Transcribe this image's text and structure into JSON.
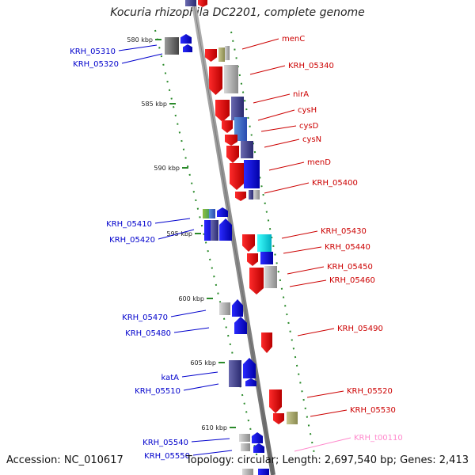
{
  "title": "Kocuria rhizophila DC2201, complete genome",
  "footer": {
    "accession": "Accession: NC_010617",
    "topology": "Topology: circular; Length: 2,697,540 bp; Genes: 2,413"
  },
  "colors": {
    "forward_label": "#cc0000",
    "reverse_label": "#0000cc",
    "rna_label": "#ff88cc",
    "backbone": "#8a8a8a",
    "tick": "#2a8a2a"
  },
  "kbp_ticks": [
    {
      "label": "580 kbp"
    },
    {
      "label": "585 kbp"
    },
    {
      "label": "590 kbp"
    },
    {
      "label": "595 kbp"
    },
    {
      "label": "600 kbp"
    },
    {
      "label": "605 kbp"
    },
    {
      "label": "610 kbp"
    }
  ],
  "genes_left": [
    {
      "label": "KRH_05310"
    },
    {
      "label": "KRH_05320"
    },
    {
      "label": "KRH_05410"
    },
    {
      "label": "KRH_05420"
    },
    {
      "label": "KRH_05470"
    },
    {
      "label": "KRH_05480"
    },
    {
      "label": "katA"
    },
    {
      "label": "KRH_05510"
    },
    {
      "label": "KRH_05540"
    },
    {
      "label": "KRH_05550"
    }
  ],
  "genes_right": [
    {
      "label": "menC"
    },
    {
      "label": "KRH_05340"
    },
    {
      "label": "nirA"
    },
    {
      "label": "cysH"
    },
    {
      "label": "cysD"
    },
    {
      "label": "cysN"
    },
    {
      "label": "menD"
    },
    {
      "label": "KRH_05400"
    },
    {
      "label": "KRH_05430"
    },
    {
      "label": "KRH_05440"
    },
    {
      "label": "KRH_05450"
    },
    {
      "label": "KRH_05460"
    },
    {
      "label": "KRH_05490"
    },
    {
      "label": "KRH_05520"
    },
    {
      "label": "KRH_05530"
    },
    {
      "label": "KRH_t00110"
    }
  ]
}
